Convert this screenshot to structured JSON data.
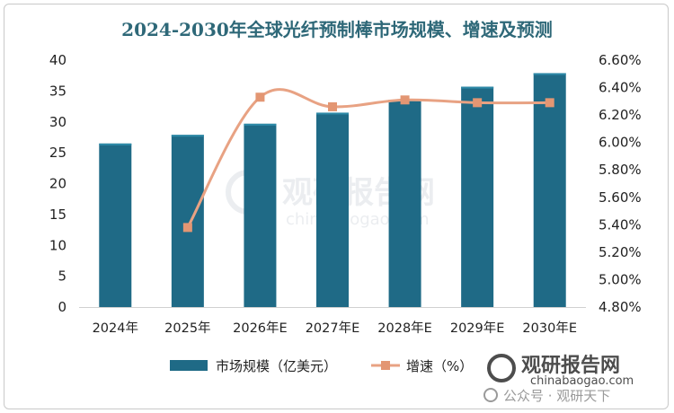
{
  "chart_data": {
    "type": "bar",
    "title": "2024-2030年全球光纤预制棒市场规模、增速及预测",
    "categories": [
      "2024年",
      "2025年",
      "2026年E",
      "2027年E",
      "2028年E",
      "2029年E",
      "2030年E"
    ],
    "series": [
      {
        "name": "市场规模（亿美元）",
        "type": "bar",
        "axis": "left",
        "values": [
          26.5,
          27.9,
          29.7,
          31.5,
          33.6,
          35.7,
          37.9
        ],
        "color": "#1f6a86"
      },
      {
        "name": "增速（%）",
        "type": "line",
        "axis": "right",
        "values": [
          null,
          5.38,
          6.33,
          6.26,
          6.31,
          6.29,
          6.29
        ],
        "color": "#e8a283"
      }
    ],
    "y_left": {
      "min": 0,
      "max": 40,
      "step": 5,
      "ticks": [
        "0",
        "5",
        "10",
        "15",
        "20",
        "25",
        "30",
        "35",
        "40"
      ]
    },
    "y_right": {
      "min": 4.8,
      "max": 6.6,
      "step": 0.2,
      "ticks": [
        "4.80%",
        "5.00%",
        "5.20%",
        "5.40%",
        "5.60%",
        "5.80%",
        "6.00%",
        "6.20%",
        "6.40%",
        "6.60%"
      ]
    },
    "grid": false,
    "legend": "bottom"
  },
  "watermark": {
    "center_cn": "观研报告网",
    "center_en": "chinabaogao.com",
    "corner_cn": "观研报告网",
    "corner_en": "chinabaogao.com",
    "wechat": "公众号 · 观研天下"
  }
}
